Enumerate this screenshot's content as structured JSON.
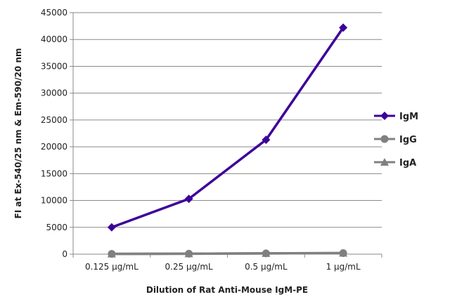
{
  "chart_data": {
    "type": "line",
    "title": "",
    "xlabel": "Dilution of Rat Anti-Mouse IgM-PE",
    "ylabel": "FI at Ex-540/25 nm & Em-590/20 nm",
    "categories": [
      "0.125 µg/mL",
      "0.25 µg/mL",
      "0.5 µg/mL",
      "1 µg/mL"
    ],
    "ylim": [
      0,
      45000
    ],
    "yticks": [
      0,
      5000,
      10000,
      15000,
      20000,
      25000,
      30000,
      35000,
      40000,
      45000
    ],
    "grid": true,
    "legend_position": "right",
    "series": [
      {
        "name": "IgM",
        "values": [
          5000,
          10300,
          21300,
          42200
        ],
        "color": "#3d0099",
        "marker": "diamond"
      },
      {
        "name": "IgG",
        "values": [
          50,
          80,
          150,
          200
        ],
        "color": "#808080",
        "marker": "circle"
      },
      {
        "name": "IgA",
        "values": [
          50,
          80,
          150,
          200
        ],
        "color": "#808080",
        "marker": "triangle"
      }
    ]
  }
}
